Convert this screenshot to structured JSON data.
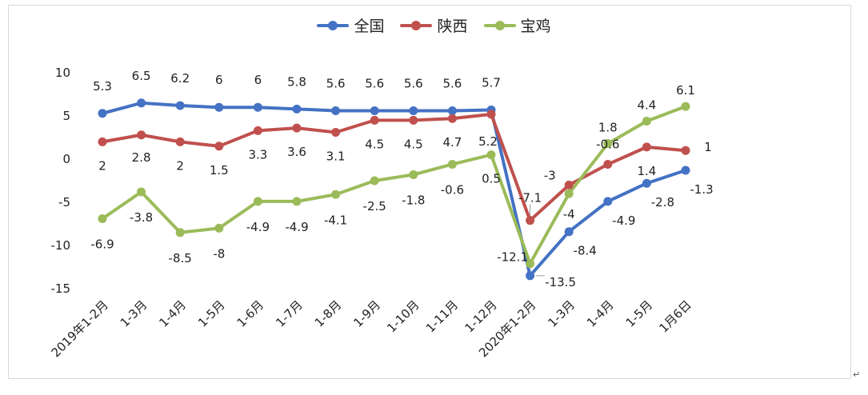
{
  "chart_data": {
    "type": "line",
    "categories": [
      "2019年1-2月",
      "1-3月",
      "1-4月",
      "1-5月",
      "1-6月",
      "1-7月",
      "1-8月",
      "1-9月",
      "1-10月",
      "1-11月",
      "1-12月",
      "2020年1-2月",
      "1-3月",
      "1-4月",
      "1-5月",
      "1月6日"
    ],
    "series": [
      {
        "name": "全国",
        "color": "#4472C4",
        "values": [
          5.3,
          6.5,
          6.2,
          6,
          6,
          5.8,
          5.6,
          5.6,
          5.6,
          5.6,
          5.7,
          -13.5,
          -8.4,
          -4.9,
          -2.8,
          -1.3
        ]
      },
      {
        "name": "陕西",
        "color": "#C0504D",
        "values": [
          2,
          2.8,
          2,
          1.5,
          3.3,
          3.6,
          3.1,
          4.5,
          4.5,
          4.7,
          5.2,
          -7.1,
          -3,
          -0.6,
          1.4,
          1
        ]
      },
      {
        "name": "宝鸡",
        "color": "#9BBB59",
        "values": [
          -6.9,
          -3.8,
          -8.5,
          -8,
          -4.9,
          -4.9,
          -4.1,
          -2.5,
          -1.8,
          -0.6,
          0.5,
          -12.1,
          -4,
          1.8,
          4.4,
          6.1
        ]
      }
    ],
    "ylim": [
      -15,
      10
    ],
    "yticks": [
      10,
      5,
      0,
      -5,
      -10,
      -15
    ],
    "xlabel": "",
    "ylabel": "",
    "grid": false,
    "legend_position": "top"
  }
}
